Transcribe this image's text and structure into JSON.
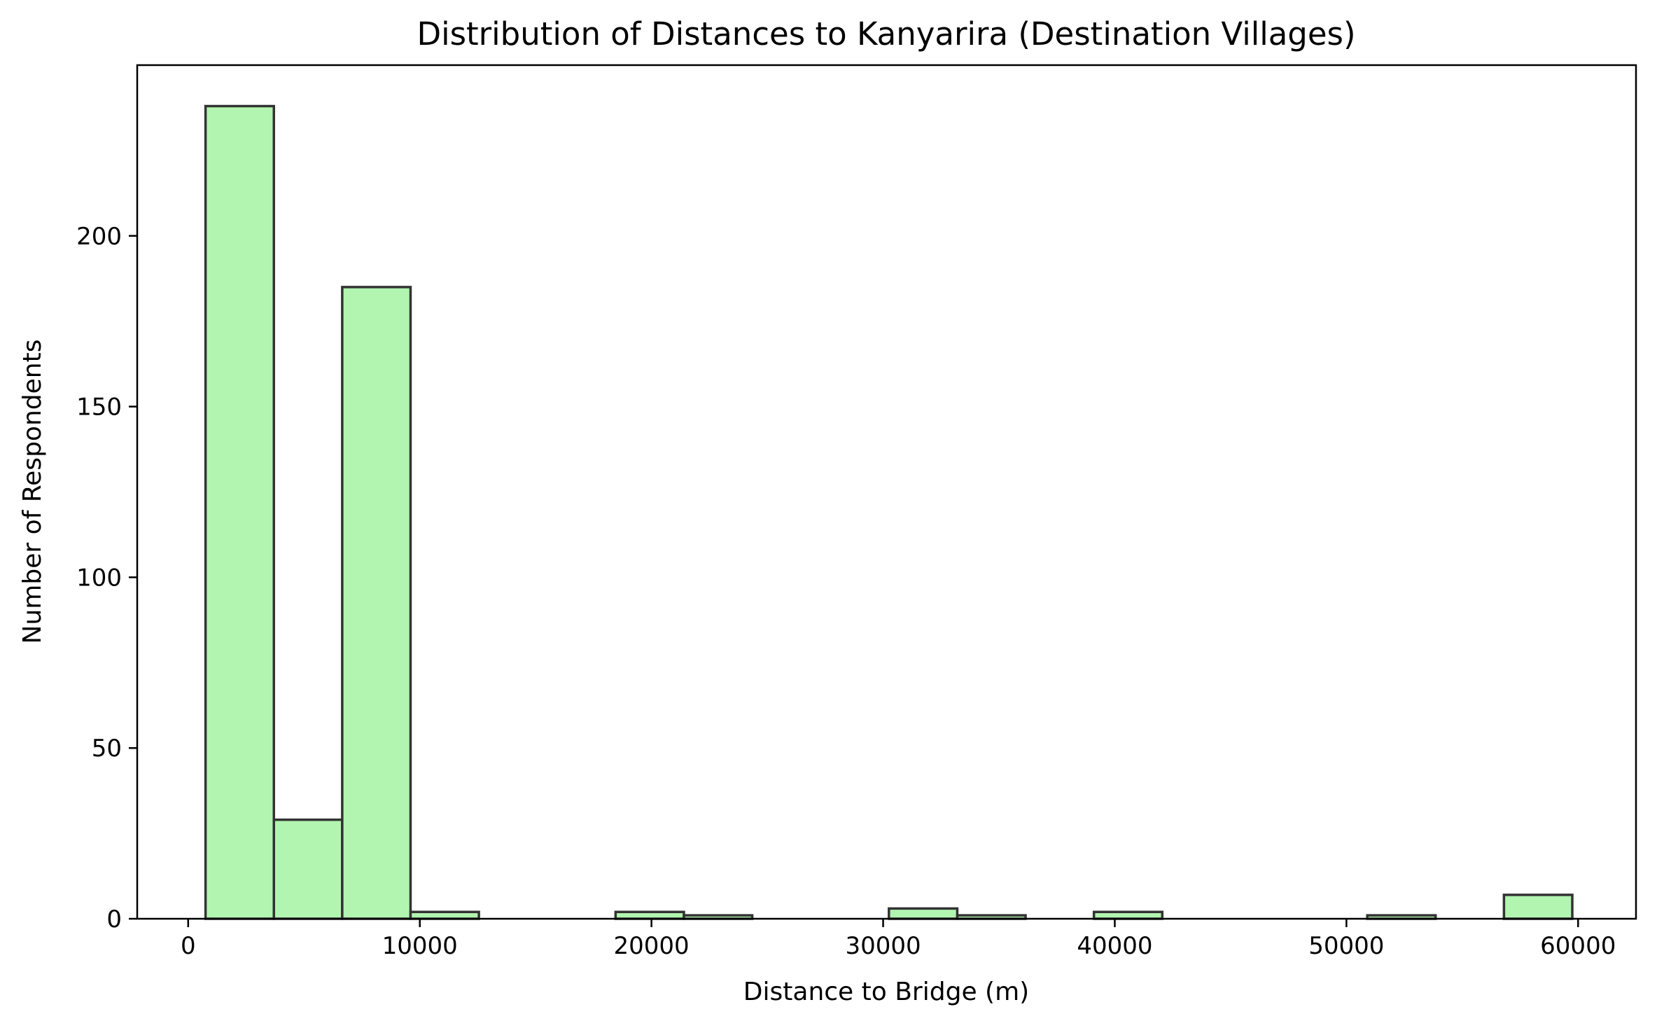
{
  "chart_data": {
    "type": "bar",
    "title": "Distribution of Distances to Kanyarira (Destination Villages)",
    "xlabel": "Distance to Bridge (m)",
    "ylabel": "Number of Respondents",
    "xlim": [
      -2200,
      62500
    ],
    "ylim": [
      0,
      250
    ],
    "xticks": [
      0,
      10000,
      20000,
      30000,
      40000,
      50000,
      60000
    ],
    "yticks": [
      0,
      50,
      100,
      150,
      200
    ],
    "grid": false,
    "legend": "none",
    "bar_fill": "#b2f5b0",
    "bar_edge": "#333333",
    "bins": [
      {
        "x0": 750,
        "x1": 3700,
        "count": 238
      },
      {
        "x0": 3700,
        "x1": 6650,
        "count": 29
      },
      {
        "x0": 6650,
        "x1": 9600,
        "count": 185
      },
      {
        "x0": 9600,
        "x1": 12550,
        "count": 2
      },
      {
        "x0": 12550,
        "x1": 15500,
        "count": 0
      },
      {
        "x0": 15500,
        "x1": 18450,
        "count": 0
      },
      {
        "x0": 18450,
        "x1": 21400,
        "count": 2
      },
      {
        "x0": 21400,
        "x1": 24350,
        "count": 1
      },
      {
        "x0": 24350,
        "x1": 27300,
        "count": 0
      },
      {
        "x0": 27300,
        "x1": 30250,
        "count": 0
      },
      {
        "x0": 30250,
        "x1": 33200,
        "count": 3
      },
      {
        "x0": 33200,
        "x1": 36150,
        "count": 1
      },
      {
        "x0": 36150,
        "x1": 39100,
        "count": 0
      },
      {
        "x0": 39100,
        "x1": 42050,
        "count": 2
      },
      {
        "x0": 42050,
        "x1": 45000,
        "count": 0
      },
      {
        "x0": 45000,
        "x1": 47950,
        "count": 0
      },
      {
        "x0": 47950,
        "x1": 50900,
        "count": 0
      },
      {
        "x0": 50900,
        "x1": 53850,
        "count": 1
      },
      {
        "x0": 53850,
        "x1": 56800,
        "count": 0
      },
      {
        "x0": 56800,
        "x1": 59750,
        "count": 7
      }
    ]
  }
}
